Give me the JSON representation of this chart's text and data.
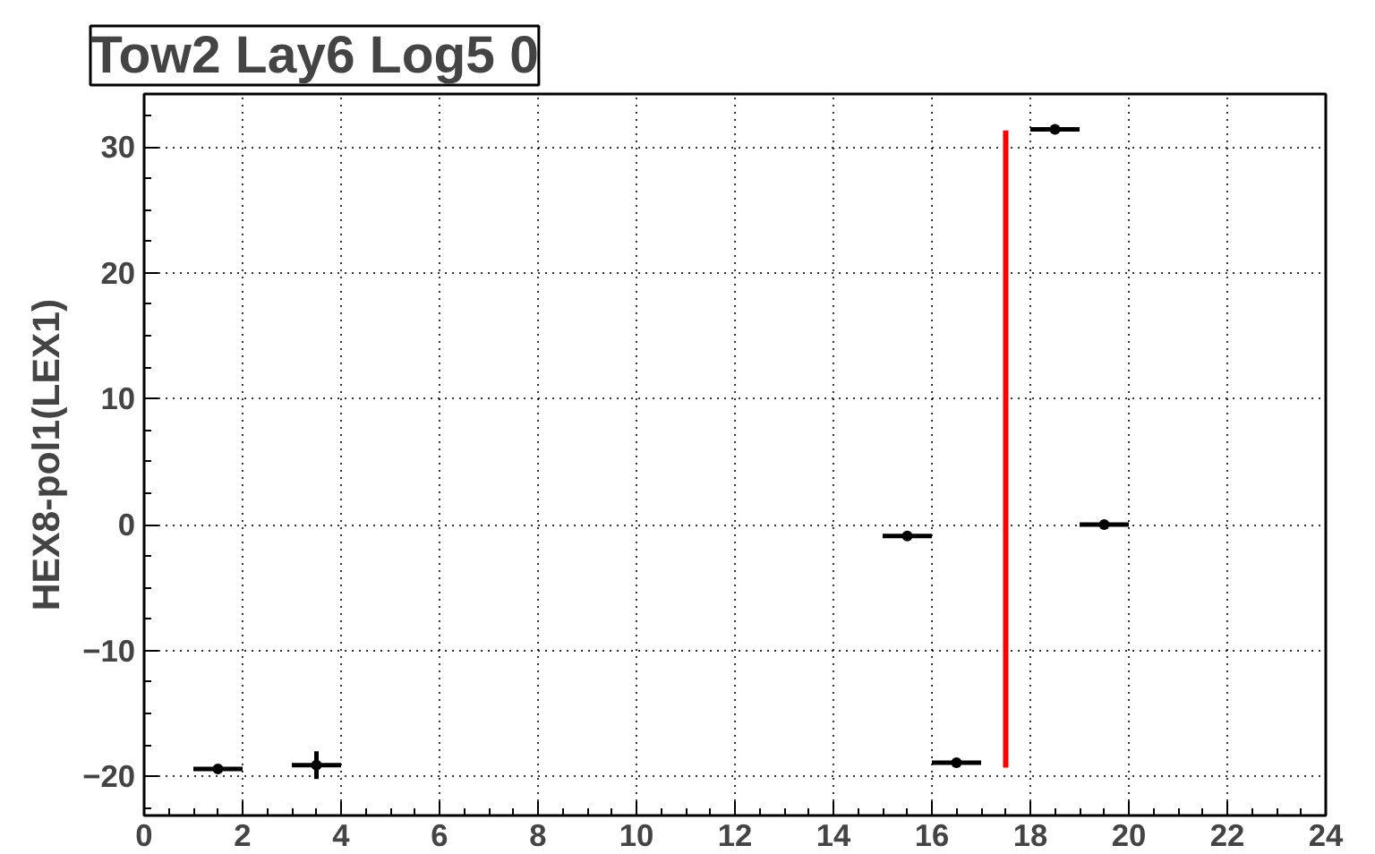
{
  "chart_data": {
    "type": "scatter",
    "title": "Tow2 Lay6 Log5 0",
    "ylabel": "HEX8-pol1(LEX1)",
    "xlim": [
      0,
      24
    ],
    "ylim": [
      -23.1,
      34.2
    ],
    "xticks": [
      0,
      2,
      4,
      6,
      8,
      10,
      12,
      14,
      16,
      18,
      20,
      22,
      24
    ],
    "yticks": [
      -20,
      -10,
      0,
      10,
      20,
      30
    ],
    "grid": true,
    "series": [
      {
        "color": "#000000",
        "x": [
          1.5,
          3.5,
          15.5,
          16.5,
          18.5,
          19.5
        ],
        "values": [
          -19.4,
          -19.1,
          -0.9,
          -18.9,
          31.4,
          0
        ],
        "xerrors": [
          0.5,
          0.5,
          0.5,
          0.5,
          0.5,
          0.5
        ],
        "errors": [
          0.2,
          1.1,
          null,
          null,
          null,
          null
        ]
      },
      {
        "type": "line",
        "color": "#ff0000",
        "x": [
          17.5,
          17.5
        ],
        "values": [
          -19.3,
          31.3
        ]
      }
    ]
  }
}
